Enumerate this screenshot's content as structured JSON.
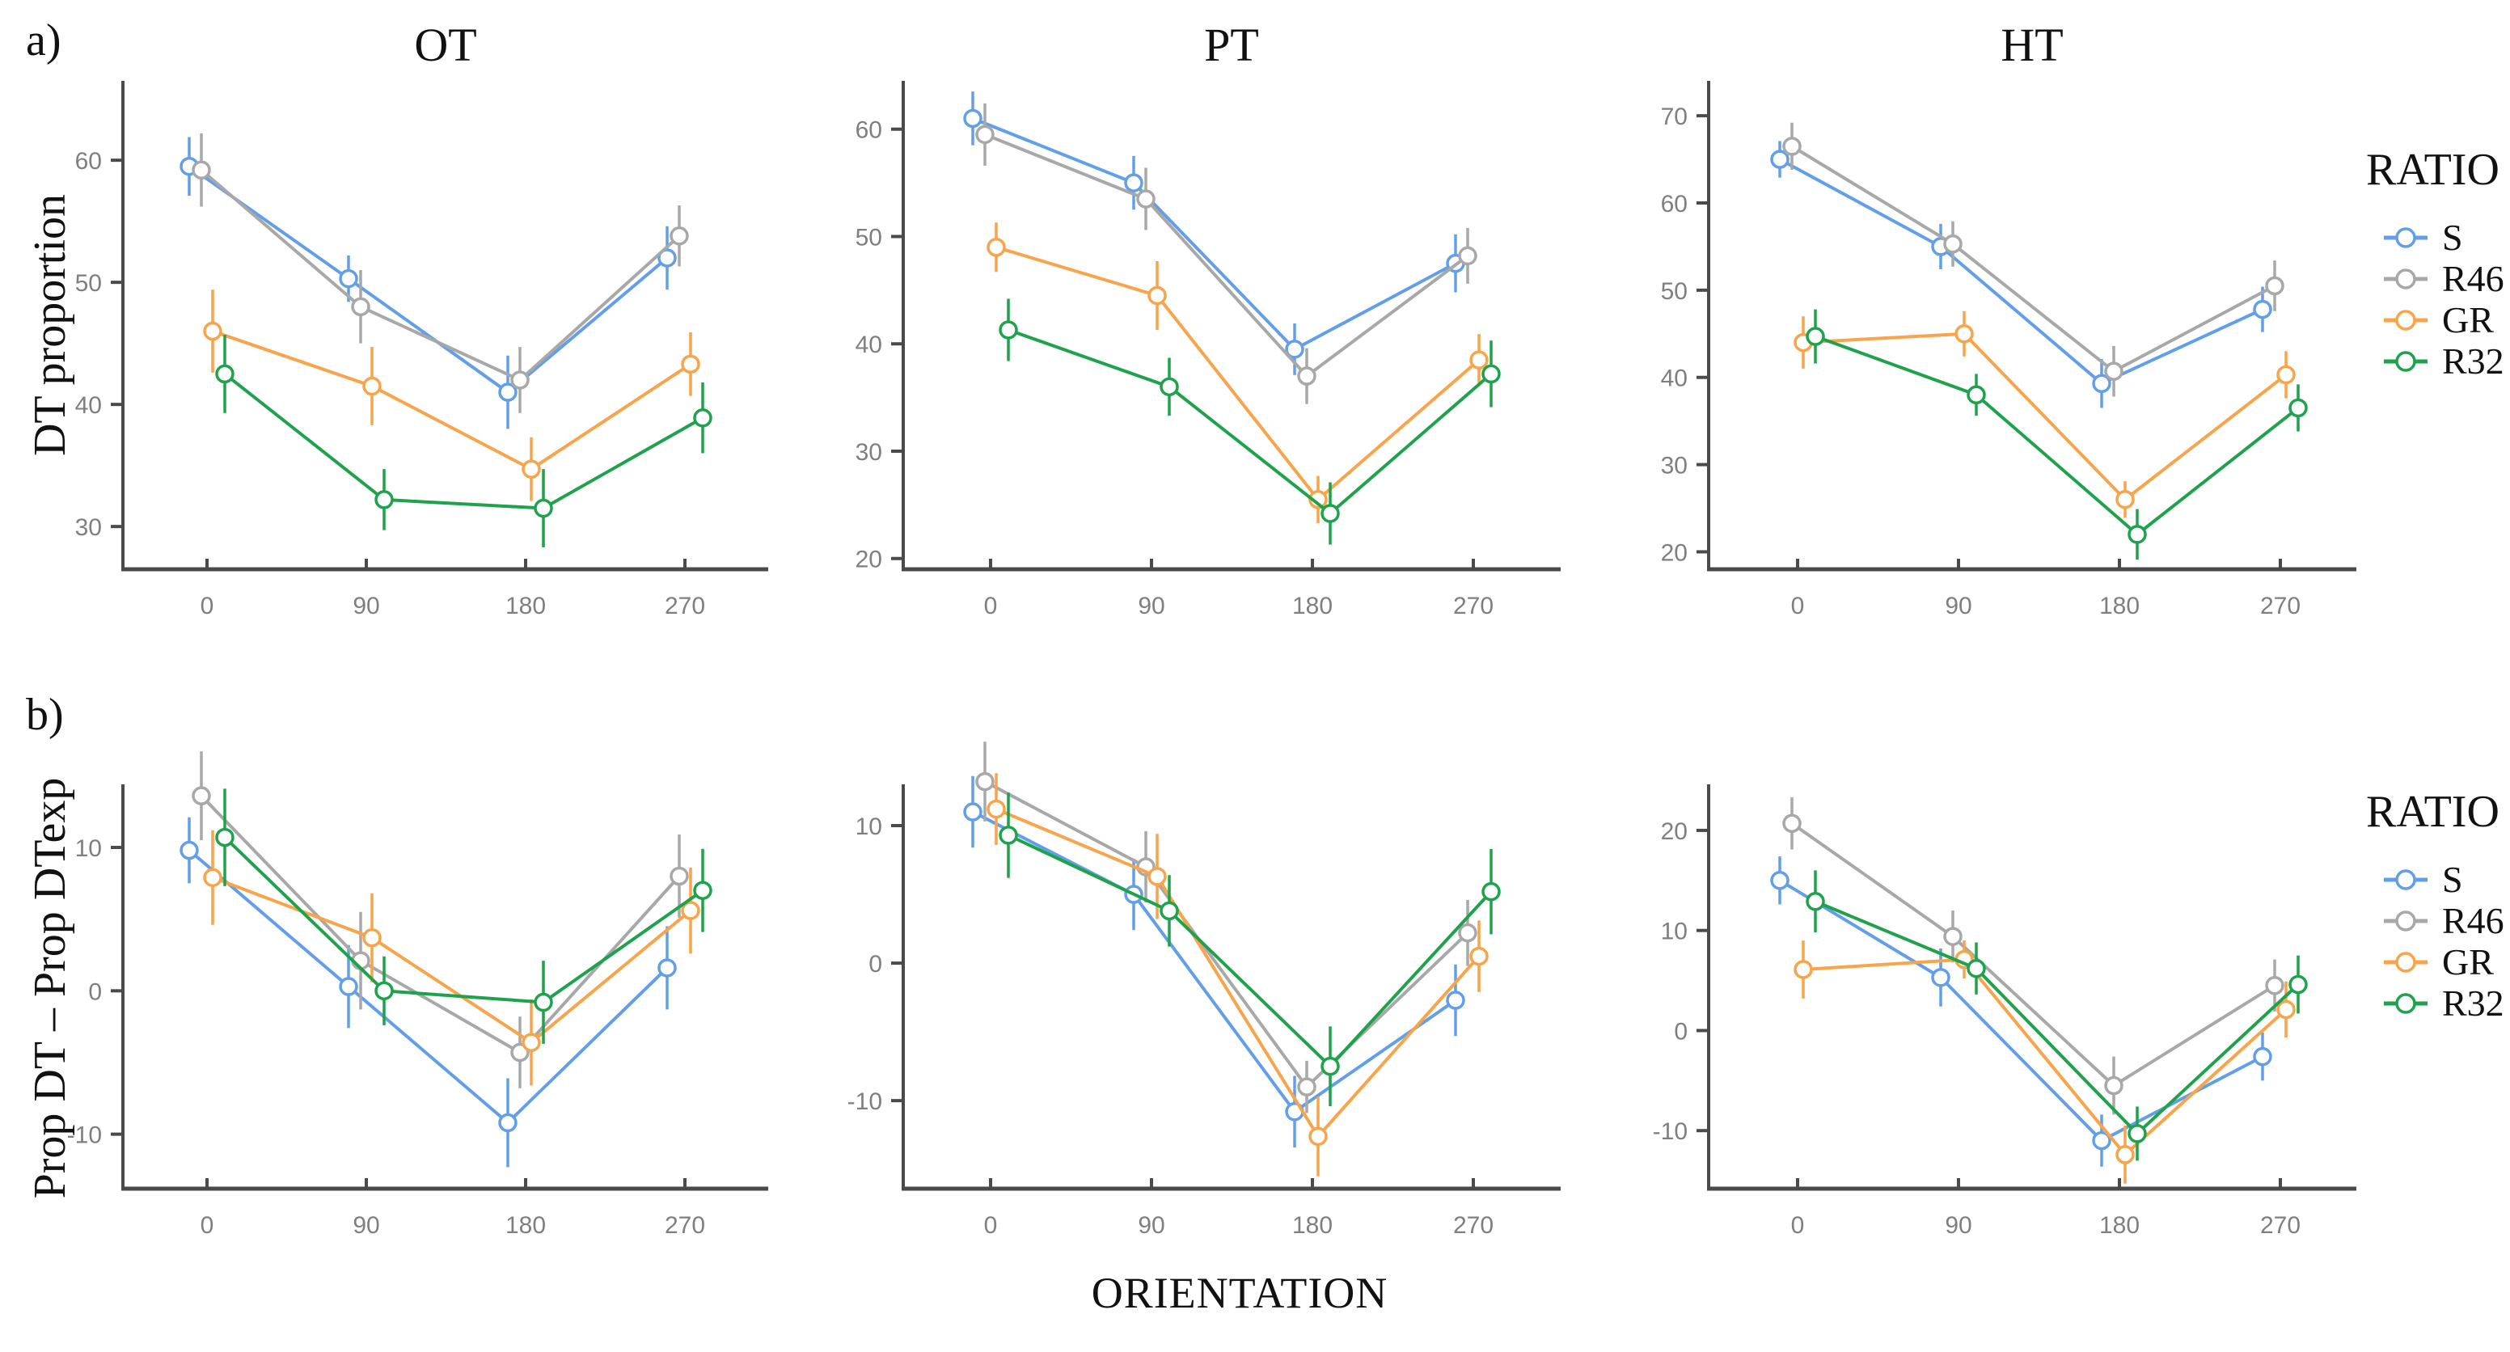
{
  "figure": {
    "row_a_label": "a)",
    "row_b_label": "b)",
    "ylabel_a": "DT proportion",
    "ylabel_b": "Prop DT – Prop DTexp",
    "xlabel": "ORIENTATION"
  },
  "legend": {
    "title": "RATIO",
    "entries": [
      {
        "label": "S",
        "color": "#639FE9"
      },
      {
        "label": "R46",
        "color": "#A8A8A8"
      },
      {
        "label": "GR",
        "color": "#F8A44A"
      },
      {
        "label": "R32",
        "color": "#1FA24C"
      }
    ]
  },
  "style_colors": {
    "axis": "#4A4A4A",
    "tick_text": "#7F7F7F",
    "marker_fill": "#FFFFFF"
  },
  "chart_data": [
    {
      "id": "a-OT",
      "type": "line",
      "row": "a",
      "col": 0,
      "title": "OT",
      "x": [
        0,
        90,
        180,
        270
      ],
      "xticks": [
        0,
        90,
        180,
        270
      ],
      "yticks": [
        30,
        40,
        50,
        60
      ],
      "ylim": [
        26.5,
        66.5
      ],
      "legend_position": "right",
      "grid": false,
      "series": [
        {
          "name": "S",
          "values": [
            59.5,
            50.3,
            41.0,
            52.0
          ],
          "errors": [
            2.4,
            1.9,
            3.0,
            2.6
          ]
        },
        {
          "name": "R46",
          "values": [
            59.2,
            48.0,
            42.0,
            53.8
          ],
          "errors": [
            3.0,
            3.0,
            2.7,
            2.5
          ]
        },
        {
          "name": "GR",
          "values": [
            46.0,
            41.5,
            34.7,
            43.3
          ],
          "errors": [
            3.4,
            3.2,
            2.6,
            2.6
          ]
        },
        {
          "name": "R32",
          "values": [
            42.5,
            32.2,
            31.5,
            38.9
          ],
          "errors": [
            3.2,
            2.5,
            3.2,
            2.9
          ]
        }
      ]
    },
    {
      "id": "a-PT",
      "type": "line",
      "row": "a",
      "col": 1,
      "title": "PT",
      "x": [
        0,
        90,
        180,
        270
      ],
      "xticks": [
        0,
        90,
        180,
        270
      ],
      "yticks": [
        20,
        30,
        40,
        50,
        60
      ],
      "ylim": [
        19,
        64.5
      ],
      "legend_position": "right",
      "grid": false,
      "series": [
        {
          "name": "S",
          "values": [
            61.0,
            55.0,
            39.5,
            47.5
          ],
          "errors": [
            2.5,
            2.5,
            2.4,
            2.7
          ]
        },
        {
          "name": "R46",
          "values": [
            59.5,
            53.5,
            37.0,
            48.2
          ],
          "errors": [
            2.9,
            2.9,
            2.6,
            2.6
          ]
        },
        {
          "name": "GR",
          "values": [
            49.0,
            44.5,
            25.5,
            38.5
          ],
          "errors": [
            2.3,
            3.2,
            2.2,
            2.4
          ]
        },
        {
          "name": "R32",
          "values": [
            41.3,
            36.0,
            24.2,
            37.2
          ],
          "errors": [
            2.9,
            2.7,
            2.9,
            3.1
          ]
        }
      ]
    },
    {
      "id": "a-HT",
      "type": "line",
      "row": "a",
      "col": 2,
      "title": "HT",
      "x": [
        0,
        90,
        180,
        270
      ],
      "xticks": [
        0,
        90,
        180,
        270
      ],
      "yticks": [
        20,
        30,
        40,
        50,
        60,
        70
      ],
      "ylim": [
        18,
        74
      ],
      "legend_position": "right",
      "grid": false,
      "series": [
        {
          "name": "S",
          "values": [
            65.0,
            55.0,
            39.3,
            47.8
          ],
          "errors": [
            2.1,
            2.6,
            2.8,
            2.6
          ]
        },
        {
          "name": "R46",
          "values": [
            66.5,
            55.3,
            40.7,
            50.5
          ],
          "errors": [
            2.7,
            2.6,
            2.9,
            2.9
          ]
        },
        {
          "name": "GR",
          "values": [
            44.0,
            45.0,
            26.0,
            40.3
          ],
          "errors": [
            3.0,
            2.6,
            2.1,
            2.7
          ]
        },
        {
          "name": "R32",
          "values": [
            44.7,
            38.0,
            22.0,
            36.5
          ],
          "errors": [
            3.1,
            2.4,
            2.9,
            2.7
          ]
        }
      ]
    },
    {
      "id": "b-OT",
      "type": "line",
      "row": "b",
      "col": 0,
      "title": "",
      "x": [
        0,
        90,
        180,
        270
      ],
      "xticks": [
        0,
        90,
        180,
        270
      ],
      "yticks": [
        -10,
        0,
        10
      ],
      "ylim": [
        -13.8,
        14.4
      ],
      "legend_position": "right",
      "grid": false,
      "series": [
        {
          "name": "S",
          "values": [
            9.8,
            0.3,
            -9.2,
            1.6
          ],
          "errors": [
            2.3,
            2.9,
            3.1,
            2.9
          ]
        },
        {
          "name": "R46",
          "values": [
            13.6,
            2.1,
            -4.3,
            8.0
          ],
          "errors": [
            3.1,
            3.4,
            2.5,
            2.9
          ]
        },
        {
          "name": "GR",
          "values": [
            7.9,
            3.7,
            -3.6,
            5.6
          ],
          "errors": [
            3.3,
            3.1,
            3.0,
            3.0
          ]
        },
        {
          "name": "R32",
          "values": [
            10.7,
            0.0,
            -0.8,
            7.0
          ],
          "errors": [
            3.4,
            2.4,
            2.9,
            2.9
          ]
        }
      ]
    },
    {
      "id": "b-PT",
      "type": "line",
      "row": "b",
      "col": 1,
      "title": "",
      "x": [
        0,
        90,
        180,
        270
      ],
      "xticks": [
        0,
        90,
        180,
        270
      ],
      "yticks": [
        -10,
        0,
        10
      ],
      "ylim": [
        -16.4,
        13.0
      ],
      "legend_position": "right",
      "grid": false,
      "series": [
        {
          "name": "S",
          "values": [
            11.0,
            5.0,
            -10.8,
            -2.7
          ],
          "errors": [
            2.6,
            2.6,
            2.6,
            2.6
          ]
        },
        {
          "name": "R46",
          "values": [
            13.2,
            7.0,
            -9.0,
            2.2
          ],
          "errors": [
            2.9,
            2.6,
            1.9,
            2.4
          ]
        },
        {
          "name": "GR",
          "values": [
            11.2,
            6.3,
            -12.6,
            0.5
          ],
          "errors": [
            2.6,
            3.1,
            2.9,
            2.6
          ]
        },
        {
          "name": "R32",
          "values": [
            9.3,
            3.8,
            -7.5,
            5.2
          ],
          "errors": [
            3.1,
            2.6,
            2.9,
            3.1
          ]
        }
      ]
    },
    {
      "id": "b-HT",
      "type": "line",
      "row": "b",
      "col": 2,
      "title": "",
      "x": [
        0,
        90,
        180,
        270
      ],
      "xticks": [
        0,
        90,
        180,
        270
      ],
      "yticks": [
        -10,
        0,
        10,
        20
      ],
      "ylim": [
        -15.8,
        24.6
      ],
      "legend_position": "right",
      "grid": false,
      "series": [
        {
          "name": "S",
          "values": [
            15.0,
            5.3,
            -11.0,
            -2.6
          ],
          "errors": [
            2.4,
            2.9,
            2.6,
            2.4
          ]
        },
        {
          "name": "R46",
          "values": [
            20.7,
            9.4,
            -5.5,
            4.5
          ],
          "errors": [
            2.6,
            2.6,
            2.9,
            2.6
          ]
        },
        {
          "name": "GR",
          "values": [
            6.1,
            7.1,
            -12.4,
            2.1
          ],
          "errors": [
            2.9,
            1.9,
            2.9,
            2.8
          ]
        },
        {
          "name": "R32",
          "values": [
            12.9,
            6.2,
            -10.3,
            4.6
          ],
          "errors": [
            3.1,
            2.6,
            2.7,
            2.9
          ]
        }
      ]
    }
  ]
}
